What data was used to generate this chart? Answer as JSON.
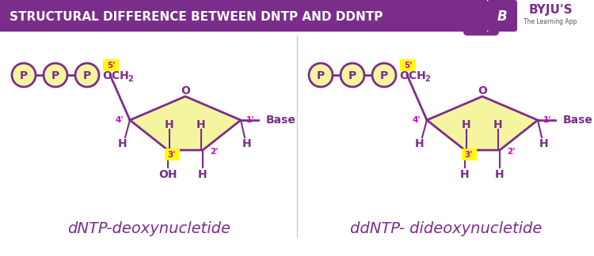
{
  "title": "STRUCTURAL DIFFERENCE BETWEEN DNTP AND DDNTP",
  "title_bg": "#7B2D8B",
  "title_color": "#FFFFFF",
  "body_bg": "#FFFFFF",
  "purple": "#7B2D8B",
  "magenta": "#CC00CC",
  "yellow_bg": "#F5F5A0",
  "yellow_label": "#FFFF00",
  "label1": "dNTP-deoxynucletide",
  "label2": "ddNTP- dideoxynucletide",
  "label_fontsize": 14
}
